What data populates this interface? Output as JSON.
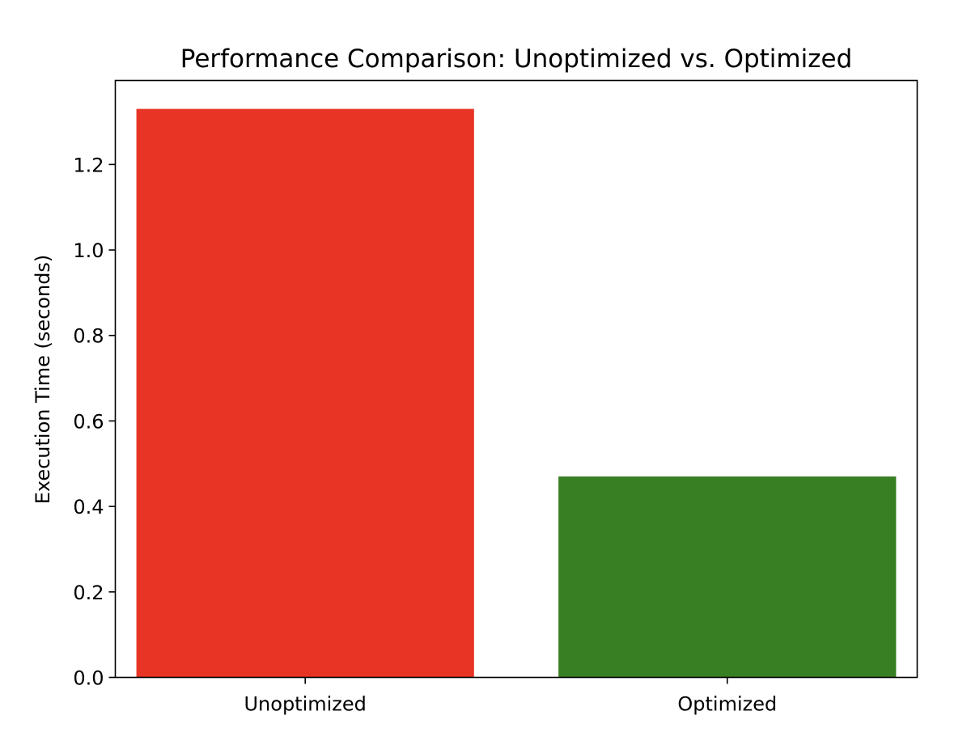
{
  "chart_data": {
    "type": "bar",
    "title": "Performance Comparison: Unoptimized vs. Optimized",
    "xlabel": "",
    "ylabel": "Execution Time (seconds)",
    "categories": [
      "Unoptimized",
      "Optimized"
    ],
    "values": [
      1.33,
      0.47
    ],
    "colors": [
      "#e83425",
      "#387e22"
    ],
    "ylim": [
      0,
      1.3965
    ],
    "yticks": [
      0.0,
      0.2,
      0.4,
      0.6,
      0.8,
      1.0,
      1.2
    ],
    "ytick_labels": [
      "0.0",
      "0.2",
      "0.4",
      "0.6",
      "0.8",
      "1.0",
      "1.2"
    ],
    "grid": false,
    "legend": "none"
  }
}
